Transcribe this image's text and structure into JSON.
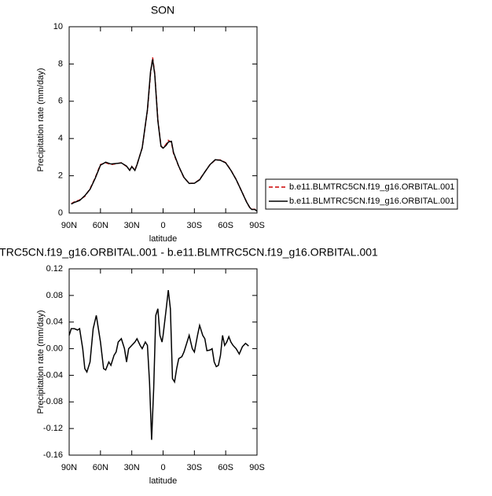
{
  "chart_data": [
    {
      "type": "line",
      "title": "SON",
      "ylabel": "Precipitation rate (mm/day)",
      "xlabel": "latitude",
      "x": [
        88,
        85,
        80,
        75,
        70,
        65,
        60,
        55,
        50,
        45,
        40,
        35,
        32,
        30,
        27,
        25,
        20,
        15,
        12,
        10,
        8,
        5,
        2,
        0,
        -3,
        -5,
        -8,
        -10,
        -15,
        -20,
        -25,
        -30,
        -35,
        -40,
        -45,
        -50,
        -55,
        -60,
        -65,
        -70,
        -75,
        -80,
        -83,
        -85,
        -88,
        -90
      ],
      "series": [
        {
          "name": "b.e11.BLMTRC5CN.f19_g16.ORBITAL.001",
          "color": "#cc0000",
          "dash": true,
          "values": [
            0.5,
            0.6,
            0.7,
            0.9,
            1.3,
            1.9,
            2.6,
            2.7,
            2.6,
            2.65,
            2.7,
            2.5,
            2.3,
            2.5,
            2.3,
            2.6,
            3.5,
            5.5,
            7.5,
            8.35,
            7.5,
            5.0,
            3.6,
            3.5,
            3.7,
            3.9,
            3.8,
            3.2,
            2.5,
            1.9,
            1.6,
            1.6,
            1.8,
            2.2,
            2.6,
            2.85,
            2.85,
            2.7,
            2.3,
            1.8,
            1.2,
            0.6,
            0.3,
            0.2,
            0.2,
            0.1
          ]
        },
        {
          "name": "b.e11.BLMTRC5CN.f19_g16.ORBITAL.001",
          "color": "#000000",
          "dash": false,
          "values": [
            0.48,
            0.57,
            0.67,
            0.93,
            1.27,
            1.87,
            2.57,
            2.73,
            2.63,
            2.66,
            2.69,
            2.52,
            2.29,
            2.49,
            2.29,
            2.59,
            3.5,
            5.55,
            7.6,
            8.25,
            7.45,
            4.95,
            3.58,
            3.48,
            3.64,
            3.81,
            3.85,
            3.25,
            2.51,
            1.91,
            1.59,
            1.6,
            1.78,
            2.2,
            2.6,
            2.86,
            2.83,
            2.69,
            2.29,
            1.8,
            1.2,
            0.59,
            0.3,
            0.19,
            0.19,
            0.1
          ]
        }
      ],
      "xlim": [
        90,
        -90
      ],
      "xticks": [
        {
          "value": 90,
          "label": "90N"
        },
        {
          "value": 60,
          "label": "60N"
        },
        {
          "value": 30,
          "label": "30N"
        },
        0,
        {
          "value": -30,
          "label": "30S"
        },
        {
          "value": -60,
          "label": "60S"
        },
        {
          "value": -90,
          "label": "90S"
        }
      ],
      "ylim": [
        0,
        10
      ],
      "yticks": [
        0,
        2,
        4,
        6,
        8,
        10
      ],
      "legend": "right"
    },
    {
      "type": "line",
      "title": "TRC5CN.f19_g16.ORBITAL.001 - b.e11.BLMTRC5CN.f19_g16.ORBITAL.001",
      "ylabel": "Precipitation rate (mm/day)",
      "xlabel": "latitude",
      "x": [
        90,
        88,
        85,
        82,
        80,
        77,
        75,
        73,
        70,
        67,
        64,
        62,
        60,
        57,
        55,
        52,
        50,
        47,
        45,
        43,
        40,
        37,
        35,
        33,
        30,
        27,
        25,
        22,
        20,
        17,
        15,
        13,
        11,
        9,
        7,
        5,
        3,
        1,
        0,
        -3,
        -5,
        -7,
        -9,
        -11,
        -13,
        -15,
        -18,
        -20,
        -23,
        -25,
        -28,
        -30,
        -33,
        -35,
        -38,
        -40,
        -42,
        -45,
        -47,
        -49,
        -51,
        -53,
        -55,
        -57,
        -59,
        -61,
        -63,
        -65,
        -67,
        -70,
        -73,
        -76,
        -79,
        -82
      ],
      "series": [
        {
          "color": "#000000",
          "dash": false,
          "values": [
            0.02,
            0.03,
            0.03,
            0.028,
            0.03,
            0.0,
            -0.03,
            -0.035,
            -0.02,
            0.03,
            0.05,
            0.03,
            0.01,
            -0.03,
            -0.032,
            -0.02,
            -0.025,
            -0.01,
            -0.005,
            0.01,
            0.015,
            0.0,
            -0.02,
            0.0,
            0.005,
            0.01,
            0.015,
            0.005,
            0.0,
            0.01,
            0.005,
            -0.05,
            -0.137,
            -0.06,
            0.05,
            0.06,
            0.02,
            0.01,
            0.02,
            0.06,
            0.088,
            0.06,
            -0.045,
            -0.05,
            -0.03,
            -0.015,
            -0.012,
            -0.005,
            0.01,
            0.02,
            0.0,
            -0.005,
            0.02,
            0.035,
            0.02,
            0.015,
            -0.003,
            -0.002,
            0.0,
            -0.02,
            -0.027,
            -0.025,
            -0.01,
            0.02,
            0.005,
            0.01,
            0.018,
            0.01,
            0.005,
            0.0,
            -0.008,
            0.003,
            0.008,
            0.004
          ]
        }
      ],
      "xlim": [
        90,
        -90
      ],
      "xticks": [
        {
          "value": 90,
          "label": "90N"
        },
        {
          "value": 60,
          "label": "60N"
        },
        {
          "value": 30,
          "label": "30N"
        },
        0,
        {
          "value": -30,
          "label": "30S"
        },
        {
          "value": -60,
          "label": "60S"
        },
        {
          "value": -90,
          "label": "90S"
        }
      ],
      "ylim": [
        -0.16,
        0.12
      ],
      "yticks": [
        0.12,
        0.08,
        0.04,
        {
          "value": 0,
          "label": "0.00"
        },
        -0.04,
        -0.08,
        -0.12,
        -0.16
      ]
    }
  ]
}
